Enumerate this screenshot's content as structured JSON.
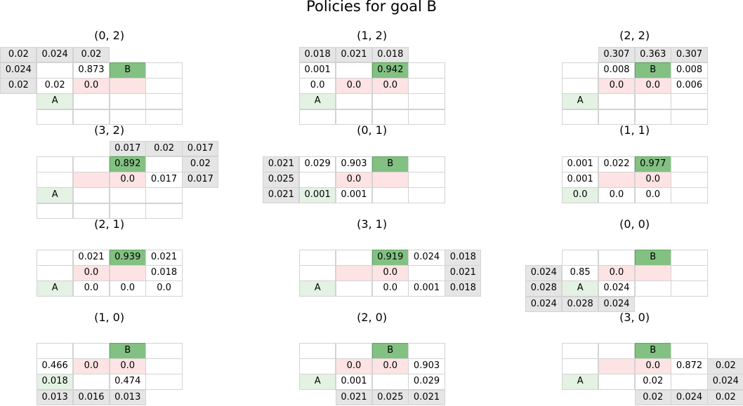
{
  "title": "Policies for goal B",
  "colors": {
    "border": "#d3d3d3",
    "goal_fill": "#82c182",
    "goal_border": "#5fa35f",
    "start_fill": "#e3f2e3",
    "hazard_fill": "#fde3e3",
    "outer_fill": "#e5e5e5"
  },
  "chart_data": [
    {
      "type": "table",
      "title": "(0, 2)",
      "grid_rows": 4,
      "grid_cols": 4,
      "goal": {
        "label": "B",
        "row": 0,
        "col": 2
      },
      "start": {
        "label": "A",
        "row": 2,
        "col": 0
      },
      "hazards": [
        [
          1,
          1
        ],
        [
          1,
          2
        ]
      ],
      "cells": [
        {
          "row": -1,
          "col": -1,
          "value": "0.02"
        },
        {
          "row": -1,
          "col": 0,
          "value": "0.024"
        },
        {
          "row": -1,
          "col": 1,
          "value": "0.02"
        },
        {
          "row": 0,
          "col": -1,
          "value": "0.024"
        },
        {
          "row": 0,
          "col": 1,
          "value": "0.873"
        },
        {
          "row": 1,
          "col": -1,
          "value": "0.02"
        },
        {
          "row": 1,
          "col": 0,
          "value": "0.02"
        },
        {
          "row": 1,
          "col": 1,
          "value": "0.0"
        }
      ]
    },
    {
      "type": "table",
      "title": "(1, 2)",
      "grid_rows": 4,
      "grid_cols": 4,
      "goal": {
        "label": "",
        "row": 0,
        "col": 2
      },
      "start": {
        "label": "A",
        "row": 2,
        "col": 0
      },
      "hazards": [
        [
          1,
          1
        ],
        [
          1,
          2
        ]
      ],
      "cells": [
        {
          "row": -1,
          "col": 0,
          "value": "0.018"
        },
        {
          "row": -1,
          "col": 1,
          "value": "0.021"
        },
        {
          "row": -1,
          "col": 2,
          "value": "0.018"
        },
        {
          "row": 0,
          "col": 0,
          "value": "0.001"
        },
        {
          "row": 0,
          "col": 2,
          "value": "0.942"
        },
        {
          "row": 1,
          "col": 0,
          "value": "0.0"
        },
        {
          "row": 1,
          "col": 1,
          "value": "0.0"
        },
        {
          "row": 1,
          "col": 2,
          "value": "0.0"
        }
      ]
    },
    {
      "type": "table",
      "title": "(2, 2)",
      "grid_rows": 4,
      "grid_cols": 4,
      "goal": {
        "label": "B",
        "row": 0,
        "col": 2
      },
      "start": {
        "label": "A",
        "row": 2,
        "col": 0
      },
      "hazards": [
        [
          1,
          1
        ],
        [
          1,
          2
        ]
      ],
      "cells": [
        {
          "row": -1,
          "col": 1,
          "value": "0.307"
        },
        {
          "row": -1,
          "col": 2,
          "value": "0.363"
        },
        {
          "row": -1,
          "col": 3,
          "value": "0.307"
        },
        {
          "row": 0,
          "col": 1,
          "value": "0.008"
        },
        {
          "row": 0,
          "col": 3,
          "value": "0.008"
        },
        {
          "row": 1,
          "col": 1,
          "value": "0.0"
        },
        {
          "row": 1,
          "col": 2,
          "value": "0.0"
        },
        {
          "row": 1,
          "col": 3,
          "value": "0.006"
        }
      ]
    },
    {
      "type": "table",
      "title": "(3, 2)",
      "grid_rows": 4,
      "grid_cols": 4,
      "goal": {
        "label": "",
        "row": 0,
        "col": 2
      },
      "start": {
        "label": "A",
        "row": 2,
        "col": 0
      },
      "hazards": [
        [
          1,
          1
        ],
        [
          1,
          2
        ]
      ],
      "cells": [
        {
          "row": -1,
          "col": 2,
          "value": "0.017"
        },
        {
          "row": -1,
          "col": 3,
          "value": "0.02"
        },
        {
          "row": -1,
          "col": 4,
          "value": "0.017"
        },
        {
          "row": 0,
          "col": 2,
          "value": "0.892"
        },
        {
          "row": 0,
          "col": 4,
          "value": "0.02"
        },
        {
          "row": 1,
          "col": 2,
          "value": "0.0"
        },
        {
          "row": 1,
          "col": 3,
          "value": "0.017"
        },
        {
          "row": 1,
          "col": 4,
          "value": "0.017"
        }
      ]
    },
    {
      "type": "table",
      "title": "(0, 1)",
      "grid_rows": 3,
      "grid_cols": 4,
      "goal": {
        "label": "B",
        "row": 0,
        "col": 2
      },
      "start": {
        "label": "",
        "row": 2,
        "col": 0
      },
      "hazards": [
        [
          1,
          1
        ],
        [
          1,
          2
        ]
      ],
      "cells": [
        {
          "row": 0,
          "col": -1,
          "value": "0.021"
        },
        {
          "row": 0,
          "col": 0,
          "value": "0.029"
        },
        {
          "row": 0,
          "col": 1,
          "value": "0.903"
        },
        {
          "row": 1,
          "col": -1,
          "value": "0.025"
        },
        {
          "row": 1,
          "col": 1,
          "value": "0.0"
        },
        {
          "row": 2,
          "col": -1,
          "value": "0.021"
        },
        {
          "row": 2,
          "col": 0,
          "value": "0.001"
        },
        {
          "row": 2,
          "col": 1,
          "value": "0.001"
        }
      ]
    },
    {
      "type": "table",
      "title": "(1, 1)",
      "grid_rows": 3,
      "grid_cols": 4,
      "goal": {
        "label": "",
        "row": 0,
        "col": 2
      },
      "start": {
        "label": "",
        "row": 2,
        "col": 0
      },
      "hazards": [
        [
          1,
          1
        ],
        [
          1,
          2
        ]
      ],
      "cells": [
        {
          "row": 0,
          "col": 0,
          "value": "0.001"
        },
        {
          "row": 0,
          "col": 1,
          "value": "0.022"
        },
        {
          "row": 0,
          "col": 2,
          "value": "0.977"
        },
        {
          "row": 1,
          "col": 0,
          "value": "0.001"
        },
        {
          "row": 1,
          "col": 2,
          "value": "0.0"
        },
        {
          "row": 2,
          "col": 0,
          "value": "0.0"
        },
        {
          "row": 2,
          "col": 1,
          "value": "0.0"
        },
        {
          "row": 2,
          "col": 2,
          "value": "0.0"
        }
      ]
    },
    {
      "type": "table",
      "title": "(2, 1)",
      "grid_rows": 3,
      "grid_cols": 4,
      "goal": {
        "label": "",
        "row": 0,
        "col": 2
      },
      "start": {
        "label": "A",
        "row": 2,
        "col": 0
      },
      "hazards": [
        [
          1,
          1
        ],
        [
          1,
          2
        ]
      ],
      "cells": [
        {
          "row": 0,
          "col": 1,
          "value": "0.021"
        },
        {
          "row": 0,
          "col": 2,
          "value": "0.939"
        },
        {
          "row": 0,
          "col": 3,
          "value": "0.021"
        },
        {
          "row": 1,
          "col": 1,
          "value": "0.0"
        },
        {
          "row": 1,
          "col": 3,
          "value": "0.018"
        },
        {
          "row": 2,
          "col": 1,
          "value": "0.0"
        },
        {
          "row": 2,
          "col": 2,
          "value": "0.0"
        },
        {
          "row": 2,
          "col": 3,
          "value": "0.0"
        }
      ]
    },
    {
      "type": "table",
      "title": "(3, 1)",
      "grid_rows": 3,
      "grid_cols": 4,
      "goal": {
        "label": "",
        "row": 0,
        "col": 2
      },
      "start": {
        "label": "A",
        "row": 2,
        "col": 0
      },
      "hazards": [
        [
          1,
          1
        ],
        [
          1,
          2
        ]
      ],
      "cells": [
        {
          "row": 0,
          "col": 2,
          "value": "0.919"
        },
        {
          "row": 0,
          "col": 3,
          "value": "0.024"
        },
        {
          "row": 0,
          "col": 4,
          "value": "0.018"
        },
        {
          "row": 1,
          "col": 2,
          "value": "0.0"
        },
        {
          "row": 1,
          "col": 4,
          "value": "0.021"
        },
        {
          "row": 2,
          "col": 2,
          "value": "0.0"
        },
        {
          "row": 2,
          "col": 3,
          "value": "0.001"
        },
        {
          "row": 2,
          "col": 4,
          "value": "0.018"
        }
      ]
    },
    {
      "type": "table",
      "title": "(0, 0)",
      "grid_rows": 3,
      "grid_cols": 4,
      "goal": {
        "label": "B",
        "row": 0,
        "col": 2
      },
      "start": {
        "label": "A",
        "row": 2,
        "col": 0
      },
      "hazards": [
        [
          1,
          1
        ],
        [
          1,
          2
        ]
      ],
      "cells": [
        {
          "row": 1,
          "col": -1,
          "value": "0.024"
        },
        {
          "row": 1,
          "col": 0,
          "value": "0.85"
        },
        {
          "row": 1,
          "col": 1,
          "value": "0.0"
        },
        {
          "row": 2,
          "col": -1,
          "value": "0.028"
        },
        {
          "row": 2,
          "col": 1,
          "value": "0.024"
        },
        {
          "row": 3,
          "col": -1,
          "value": "0.024"
        },
        {
          "row": 3,
          "col": 0,
          "value": "0.028"
        },
        {
          "row": 3,
          "col": 1,
          "value": "0.024"
        }
      ]
    },
    {
      "type": "table",
      "title": "(1, 0)",
      "grid_rows": 3,
      "grid_cols": 4,
      "goal": {
        "label": "B",
        "row": 0,
        "col": 2
      },
      "start": {
        "label": "",
        "row": 2,
        "col": 0
      },
      "hazards": [
        [
          1,
          1
        ],
        [
          1,
          2
        ]
      ],
      "cells": [
        {
          "row": 1,
          "col": 0,
          "value": "0.466"
        },
        {
          "row": 1,
          "col": 1,
          "value": "0.0"
        },
        {
          "row": 1,
          "col": 2,
          "value": "0.0"
        },
        {
          "row": 2,
          "col": 0,
          "value": "0.018"
        },
        {
          "row": 2,
          "col": 2,
          "value": "0.474"
        },
        {
          "row": 3,
          "col": 0,
          "value": "0.013"
        },
        {
          "row": 3,
          "col": 1,
          "value": "0.016"
        },
        {
          "row": 3,
          "col": 2,
          "value": "0.013"
        }
      ]
    },
    {
      "type": "table",
      "title": "(2, 0)",
      "grid_rows": 3,
      "grid_cols": 4,
      "goal": {
        "label": "B",
        "row": 0,
        "col": 2
      },
      "start": {
        "label": "A",
        "row": 2,
        "col": 0
      },
      "hazards": [
        [
          1,
          1
        ],
        [
          1,
          2
        ]
      ],
      "cells": [
        {
          "row": 1,
          "col": 1,
          "value": "0.0"
        },
        {
          "row": 1,
          "col": 2,
          "value": "0.0"
        },
        {
          "row": 1,
          "col": 3,
          "value": "0.903"
        },
        {
          "row": 2,
          "col": 1,
          "value": "0.001"
        },
        {
          "row": 2,
          "col": 3,
          "value": "0.029"
        },
        {
          "row": 3,
          "col": 1,
          "value": "0.021"
        },
        {
          "row": 3,
          "col": 2,
          "value": "0.025"
        },
        {
          "row": 3,
          "col": 3,
          "value": "0.021"
        }
      ]
    },
    {
      "type": "table",
      "title": "(3, 0)",
      "grid_rows": 3,
      "grid_cols": 4,
      "goal": {
        "label": "B",
        "row": 0,
        "col": 2
      },
      "start": {
        "label": "A",
        "row": 2,
        "col": 0
      },
      "hazards": [
        [
          1,
          1
        ],
        [
          1,
          2
        ]
      ],
      "cells": [
        {
          "row": 1,
          "col": 2,
          "value": "0.0"
        },
        {
          "row": 1,
          "col": 3,
          "value": "0.872"
        },
        {
          "row": 1,
          "col": 4,
          "value": "0.02"
        },
        {
          "row": 2,
          "col": 2,
          "value": "0.02"
        },
        {
          "row": 2,
          "col": 4,
          "value": "0.024"
        },
        {
          "row": 3,
          "col": 2,
          "value": "0.02"
        },
        {
          "row": 3,
          "col": 3,
          "value": "0.024"
        },
        {
          "row": 3,
          "col": 4,
          "value": "0.02"
        }
      ]
    }
  ]
}
